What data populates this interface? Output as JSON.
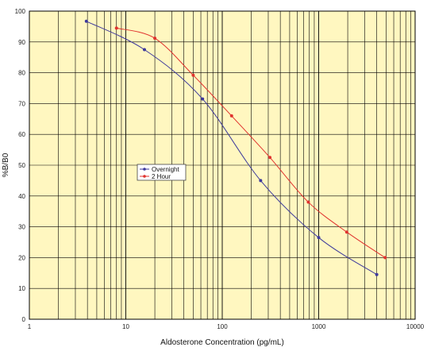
{
  "colors": {
    "background": "#FFF7C0",
    "grid": "#000000",
    "overnight": "#3E3A9C",
    "two_hour": "#E0332E"
  },
  "chart_data": {
    "type": "line",
    "xlabel": "Aldosterone Concentration (pg/mL)",
    "ylabel": "%B/B0",
    "xscale": "log",
    "xlim": [
      1,
      10000
    ],
    "ylim": [
      0,
      100
    ],
    "grid": true,
    "legend_position": "center-left",
    "x_ticks": [
      "1",
      "10",
      "100",
      "1000",
      "10000"
    ],
    "y_ticks": [
      "0",
      "10",
      "20",
      "30",
      "40",
      "50",
      "60",
      "70",
      "80",
      "90",
      "100"
    ],
    "series": [
      {
        "name": "Overnight",
        "color": "#3E3A9C",
        "x": [
          3.9,
          15.6,
          62.5,
          250,
          1000,
          4000
        ],
        "y": [
          96.7,
          87.5,
          71.5,
          45,
          26.5,
          14.5
        ]
      },
      {
        "name": "2 Hour",
        "color": "#E0332E",
        "x": [
          8,
          20,
          50,
          125,
          312,
          781,
          1953,
          4883
        ],
        "y": [
          94.5,
          91.2,
          79.2,
          66,
          52.5,
          38,
          28.3,
          20
        ]
      }
    ]
  }
}
